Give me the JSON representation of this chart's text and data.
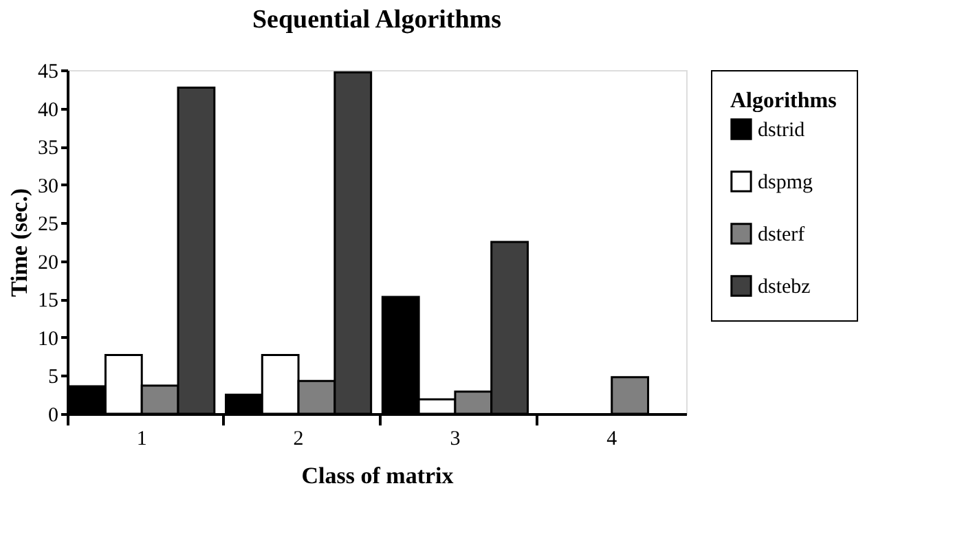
{
  "chart_data": {
    "type": "bar",
    "title": "Sequential Algorithms",
    "xlabel": "Class of matrix",
    "ylabel": "Time  (sec.)",
    "legend_title": "Algorithms",
    "categories": [
      "1",
      "2",
      "3",
      "4"
    ],
    "series": [
      {
        "name": "dstrid",
        "color": "#000000",
        "values": [
          3.6,
          2.5,
          15.3,
          null
        ]
      },
      {
        "name": "dspmg",
        "color": "#ffffff",
        "values": [
          7.7,
          7.7,
          1.9,
          null
        ]
      },
      {
        "name": "dsterf",
        "color": "#808080",
        "values": [
          3.7,
          4.3,
          2.9,
          4.8
        ]
      },
      {
        "name": "dstebz",
        "color": "#404040",
        "values": [
          42.7,
          44.7,
          22.5,
          null
        ]
      }
    ],
    "ylim": [
      0,
      45
    ],
    "yticks": [
      0,
      5,
      10,
      15,
      20,
      25,
      30,
      35,
      40,
      45
    ],
    "grid": false,
    "legend": "right"
  }
}
